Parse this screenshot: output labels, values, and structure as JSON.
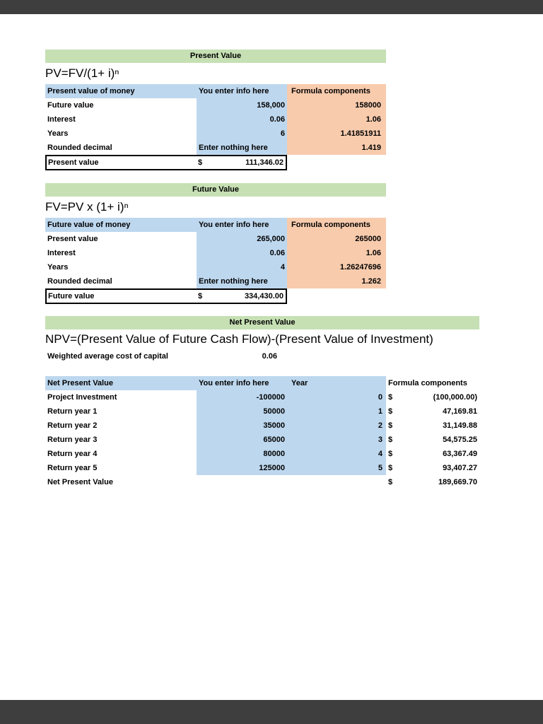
{
  "colors": {
    "viewer_chrome": "#3e3e3e",
    "section_header_green": "#c6e0b4",
    "entry_blue": "#bdd7ee",
    "components_orange": "#f8cbad"
  },
  "pv": {
    "title": "Present Value",
    "formula": "PV=FV/(1+ i)ⁿ",
    "col_headers": {
      "label": "Present value of money",
      "enter": "You enter info here",
      "components": "Formula components"
    },
    "rows": [
      {
        "label": "Future value",
        "value": "158,000",
        "component": "158000"
      },
      {
        "label": "Interest",
        "value": "0.06",
        "component": "1.06"
      },
      {
        "label": "Years",
        "value": "6",
        "component": "1.41851911"
      },
      {
        "label": "Rounded decimal",
        "value": "Enter nothing here",
        "component": "1.419"
      }
    ],
    "result": {
      "label": "Present value",
      "currency": "$",
      "value": "111,346.02"
    }
  },
  "fv": {
    "title": "Future Value",
    "formula": "FV=PV x (1+ i)ⁿ",
    "col_headers": {
      "label": "Future value of money",
      "enter": "You enter info here",
      "components": "Formula components"
    },
    "rows": [
      {
        "label": "Present value",
        "value": "265,000",
        "component": "265000"
      },
      {
        "label": "Interest",
        "value": "0.06",
        "component": "1.06"
      },
      {
        "label": "Years",
        "value": "4",
        "component": "1.26247696"
      },
      {
        "label": "Rounded decimal",
        "value": "Enter nothing here",
        "component": "1.262"
      }
    ],
    "result": {
      "label": "Future value",
      "currency": "$",
      "value": "334,430.00"
    }
  },
  "npv": {
    "title": "Net Present Value",
    "formula": "NPV=(Present Value of Future Cash Flow)-(Present Value of Investment)",
    "wacc": {
      "label": "Weighted average cost of capital",
      "value": "0.06"
    },
    "col_headers": {
      "label": "Net Present Value",
      "enter": "You enter info here",
      "year": "Year",
      "components": "Formula components"
    },
    "rows": [
      {
        "label": "Project Investment",
        "value": "-100000",
        "year": "0",
        "currency": "$",
        "component": "(100,000.00)"
      },
      {
        "label": "Return year 1",
        "value": "50000",
        "year": "1",
        "currency": "$",
        "component": "47,169.81"
      },
      {
        "label": "Return year 2",
        "value": "35000",
        "year": "2",
        "currency": "$",
        "component": "31,149.88"
      },
      {
        "label": "Return year 3",
        "value": "65000",
        "year": "3",
        "currency": "$",
        "component": "54,575.25"
      },
      {
        "label": "Return year 4",
        "value": "80000",
        "year": "4",
        "currency": "$",
        "component": "63,367.49"
      },
      {
        "label": "Return year 5",
        "value": "125000",
        "year": "5",
        "currency": "$",
        "component": "93,407.27"
      }
    ],
    "total": {
      "label": "Net Present Value",
      "currency": "$",
      "component": "189,669.70"
    }
  }
}
